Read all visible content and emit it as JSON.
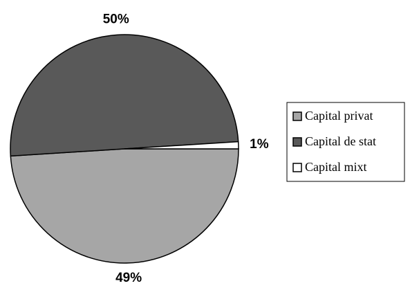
{
  "chart_data": {
    "type": "pie",
    "categories": [
      "Capital privat",
      "Capital de stat",
      "Capital mixt"
    ],
    "values": [
      49,
      50,
      1
    ],
    "value_labels": [
      "49%",
      "50%",
      "1%"
    ],
    "colors": [
      "#a6a6a6",
      "#595959",
      "#ffffff"
    ],
    "legend": "right"
  }
}
